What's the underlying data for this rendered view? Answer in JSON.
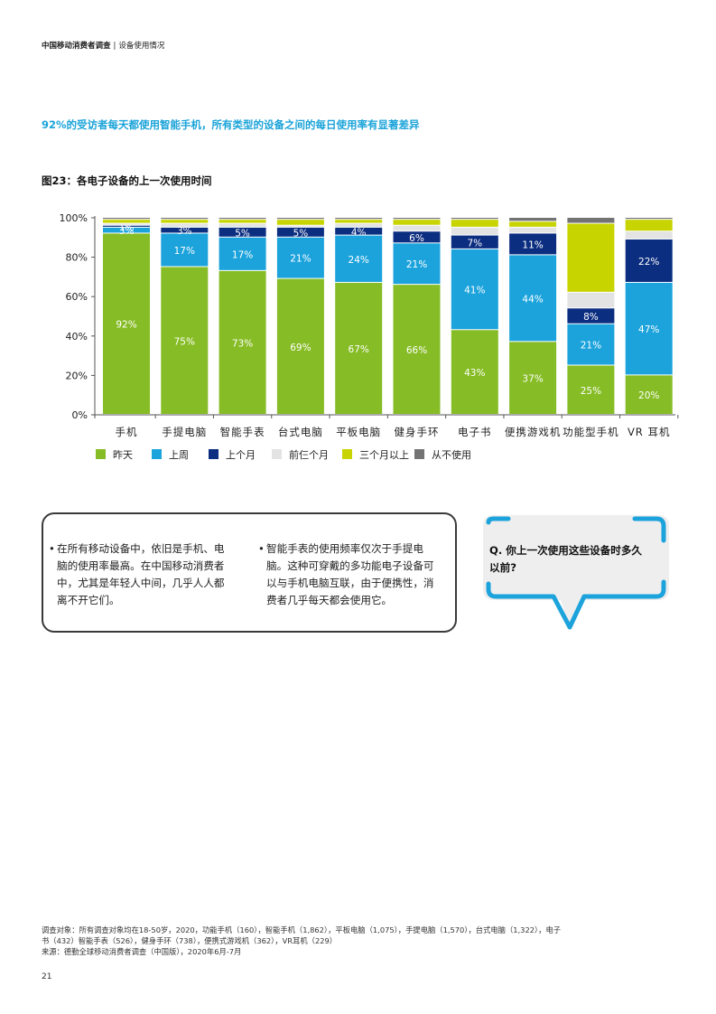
{
  "header": {
    "report": "中国移动消费者调查",
    "separator": "|",
    "section": "设备使用情况"
  },
  "headline": "92%的受访者每天都使用智能手机，所有类型的设备之间的每日使用率有显著差异",
  "figure_title": "图23：各电子设备的上一次使用时间",
  "chart_data": {
    "type": "bar",
    "stacked": true,
    "categories": [
      "手机",
      "手提电脑",
      "智能手表",
      "台式电脑",
      "平板电脑",
      "健身手环",
      "电子书",
      "便携游戏机",
      "功能型手机",
      "VR 耳机"
    ],
    "y_ticks": [
      "0%",
      "20%",
      "40%",
      "60%",
      "80%",
      "100%"
    ],
    "ylim": [
      0,
      100
    ],
    "series": [
      {
        "name": "昨天",
        "color": "#86bc25",
        "values": [
          92,
          75,
          73,
          69,
          67,
          66,
          43,
          37,
          25,
          20
        ],
        "labels": [
          "92%",
          "75%",
          "73%",
          "69%",
          "67%",
          "66%",
          "43%",
          "37%",
          "25%",
          "20%"
        ]
      },
      {
        "name": "上周",
        "color": "#1ca3dc",
        "values": [
          3,
          17,
          17,
          21,
          24,
          21,
          41,
          44,
          21,
          47
        ],
        "labels": [
          "3%",
          "17%",
          "17%",
          "21%",
          "24%",
          "21%",
          "41%",
          "44%",
          "21%",
          "47%"
        ]
      },
      {
        "name": "上个月",
        "color": "#0c2e80",
        "values": [
          1,
          3,
          5,
          5,
          4,
          6,
          7,
          11,
          8,
          22
        ],
        "labels": [
          "1%",
          "3%",
          "5%",
          "5%",
          "4%",
          "6%",
          "7%",
          "11%",
          "8%",
          "22%"
        ]
      },
      {
        "name": "前仨个月",
        "color": "#e3e3e3",
        "values": [
          1,
          2,
          2,
          1,
          2,
          3,
          4,
          3,
          8,
          4
        ],
        "labels": [
          "",
          "",
          "",
          "",
          "",
          "",
          "",
          "",
          "",
          ""
        ]
      },
      {
        "name": "三个月以上",
        "color": "#c7d400",
        "values": [
          2,
          2,
          2,
          3,
          2,
          3,
          4,
          3,
          35,
          6
        ],
        "labels": [
          "",
          "",
          "",
          "",
          "",
          "",
          "",
          "",
          "",
          ""
        ]
      },
      {
        "name": "从不使用",
        "color": "#737373",
        "values": [
          1,
          1,
          1,
          1,
          1,
          1,
          1,
          2,
          3,
          1
        ],
        "labels": [
          "",
          "",
          "",
          "",
          "",
          "",
          "",
          "",
          "",
          ""
        ]
      }
    ]
  },
  "callout": {
    "bullets": [
      [
        "在所有移动设备中，依旧是手机、电",
        "脑的使用率最高。在中国移动消费者",
        "中，尤其是年轻人中间，几乎人人都",
        "离不开它们。"
      ],
      [
        "智能手表的使用频率仅次于手提电",
        "脑。这种可穿戴的多功能电子设备可",
        "以与手机电脑互联，由于便携性，消",
        "费者几乎每天都会使用它。"
      ]
    ],
    "bullet_mark": "•"
  },
  "question": [
    "Q. 你上一次使用这些设备时多久",
    "以前?"
  ],
  "footnote": [
    "调查对象：所有调查对象均在18-50岁，2020，功能手机（160），智能手机（1,862），平板电脑（1,075），手提电脑（1,570），台式电脑（1,322），电子",
    "书（432）智能手表（526），健身手环（738），便携式游戏机（362），VR耳机（229）",
    "来源：德勤全球移动消费者调查（中国版），2020年6月-7月"
  ],
  "page_number": "21"
}
